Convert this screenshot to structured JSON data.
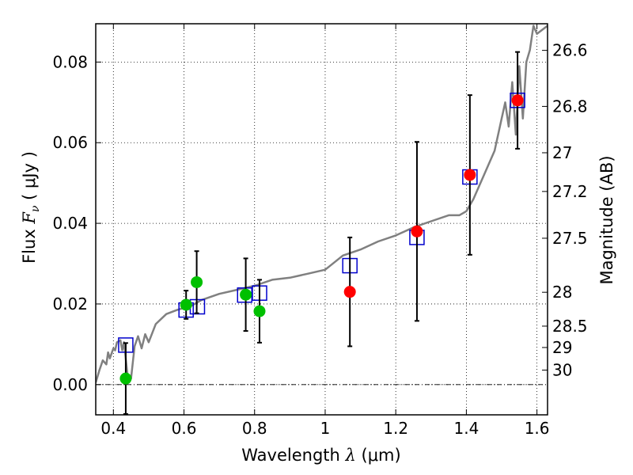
{
  "chart_data": {
    "type": "scatter",
    "xlabel_text": "Wavelength  ",
    "xlabel_symbol": "λ",
    "xlabel_unit": " (μm)",
    "ylabel_text": "Flux  ",
    "ylabel_symbol": "F",
    "ylabel_sub": "ν",
    "ylabel_unit": "  ( μJy )",
    "y2label": "Magnitude (AB)",
    "xlim": [
      0.35,
      1.63
    ],
    "ylim": [
      -0.0075,
      0.0895
    ],
    "xticks": [
      0.4,
      0.6,
      0.8,
      1.0,
      1.2,
      1.4,
      1.6
    ],
    "xtick_labels": [
      "0.4",
      "0.6",
      "0.8",
      "1",
      "1.2",
      "1.4",
      "1.6"
    ],
    "yticks": [
      0.0,
      0.02,
      0.04,
      0.06,
      0.08
    ],
    "ytick_labels": [
      "0.00",
      "0.02",
      "0.04",
      "0.06",
      "0.08"
    ],
    "y2ticks": [
      {
        "flux": 0.0829,
        "label": "26.6"
      },
      {
        "flux": 0.069,
        "label": "26.8"
      },
      {
        "flux": 0.0575,
        "label": "27"
      },
      {
        "flux": 0.0479,
        "label": "27.2"
      },
      {
        "flux": 0.0363,
        "label": "27.5"
      },
      {
        "flux": 0.0229,
        "label": "28"
      },
      {
        "flux": 0.0145,
        "label": "28.5"
      },
      {
        "flux": 0.0092,
        "label": "29"
      },
      {
        "flux": 0.0036,
        "label": "30"
      }
    ],
    "grid": true,
    "zero_line": true,
    "colors": {
      "model": "#808080",
      "optical": "#00c000",
      "infrared": "#ff0000",
      "model_points": "#0000cc",
      "errorbar": "#000000"
    },
    "series": [
      {
        "kind": "line",
        "x": [
          0.35,
          0.36,
          0.37,
          0.38,
          0.385,
          0.39,
          0.4,
          0.405,
          0.41,
          0.42,
          0.425,
          0.43,
          0.44,
          0.45,
          0.46,
          0.47,
          0.48,
          0.49,
          0.5,
          0.52,
          0.55,
          0.58,
          0.6,
          0.62,
          0.65,
          0.7,
          0.75,
          0.8,
          0.85,
          0.9,
          0.95,
          1.0,
          1.05,
          1.1,
          1.15,
          1.2,
          1.25,
          1.3,
          1.35,
          1.38,
          1.4,
          1.42,
          1.45,
          1.48,
          1.5,
          1.51,
          1.52,
          1.53,
          1.54,
          1.55,
          1.56,
          1.57,
          1.58,
          1.59,
          1.6,
          1.63
        ],
        "y": [
          0.0005,
          0.0035,
          0.006,
          0.005,
          0.008,
          0.0065,
          0.009,
          0.0085,
          0.0105,
          0.011,
          0.0085,
          0.0105,
          0.0025,
          0.0015,
          0.0095,
          0.012,
          0.009,
          0.0125,
          0.0105,
          0.015,
          0.0175,
          0.0185,
          0.019,
          0.0195,
          0.021,
          0.0225,
          0.0235,
          0.0245,
          0.026,
          0.0265,
          0.0275,
          0.0285,
          0.032,
          0.0335,
          0.0355,
          0.037,
          0.039,
          0.0405,
          0.042,
          0.042,
          0.043,
          0.046,
          0.052,
          0.058,
          0.066,
          0.07,
          0.064,
          0.075,
          0.062,
          0.079,
          0.066,
          0.08,
          0.083,
          0.089,
          0.087,
          0.089
        ]
      },
      {
        "kind": "markers",
        "marker": "square",
        "x": [
          0.435,
          0.606,
          0.638,
          0.772,
          0.814,
          1.07,
          1.26,
          1.41,
          1.545
        ],
        "y": [
          0.0098,
          0.0185,
          0.0193,
          0.0222,
          0.0227,
          0.0295,
          0.0365,
          0.0515,
          0.0705
        ]
      },
      {
        "kind": "errorbars",
        "x": [
          0.435,
          0.606,
          0.636,
          0.775,
          0.814,
          1.07,
          1.26,
          1.41,
          1.545
        ],
        "y": [
          0.0015,
          0.0198,
          0.0254,
          0.0223,
          0.0182,
          0.023,
          0.038,
          0.052,
          0.0705
        ],
        "yerr": [
          0.0088,
          0.0035,
          0.0077,
          0.009,
          0.0078,
          0.0135,
          0.0222,
          0.0198,
          0.012
        ]
      },
      {
        "kind": "markers",
        "marker": "circle",
        "x": [
          0.435,
          0.606,
          0.636,
          0.775,
          0.814
        ],
        "y": [
          0.0015,
          0.0198,
          0.0254,
          0.0223,
          0.0182
        ]
      },
      {
        "kind": "markers",
        "marker": "circle",
        "x": [
          1.07,
          1.26,
          1.41,
          1.545
        ],
        "y": [
          0.023,
          0.038,
          0.052,
          0.0705
        ]
      }
    ]
  }
}
